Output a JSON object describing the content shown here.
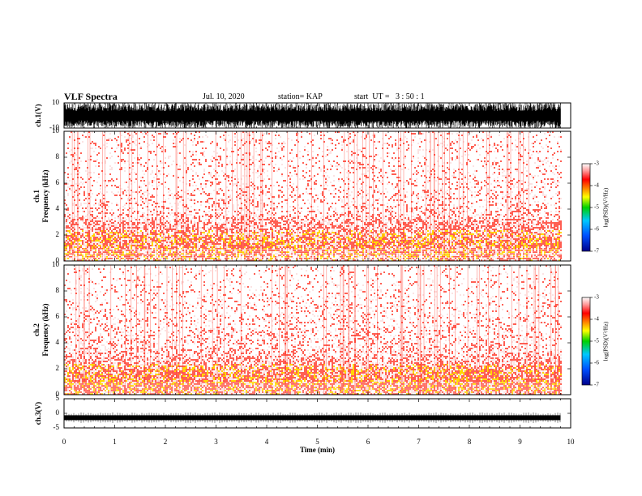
{
  "header": {
    "title": "VLF Spectra",
    "date": "Jul. 10, 2020",
    "station": "station= KAP",
    "start": "start  UT =   3 : 50 : 1"
  },
  "colors": {
    "spectrogram_bg": "#ffffff",
    "spectrogram_low": "#fbe3e3",
    "spectrogram_mid": "#ff2a1a",
    "spectrogram_high": "#ffd700",
    "waveform": "#000000"
  },
  "chart_data": [
    {
      "type": "line",
      "panel": "ch1-waveform",
      "ylabel": "ch.1(V)",
      "yticks": [
        "10",
        "-10"
      ],
      "ylim": [
        -10,
        10
      ],
      "xlim": [
        0,
        10
      ],
      "data_end_min": 9.8,
      "description_of_series": "dense VLF waveform filling approximately -10 to 10 V"
    },
    {
      "type": "heatmap",
      "panel": "ch1-spectrogram",
      "ylabel": "ch.1\nFrequency (kHz)",
      "yticks": [
        "0",
        "2",
        "4",
        "6",
        "8",
        "10"
      ],
      "ylim": [
        0,
        10
      ],
      "xlim": [
        0,
        10
      ],
      "data_end_min": 9.8,
      "band_profile_khz": [
        [
          0.0,
          0.55
        ],
        [
          0.5,
          0.8
        ],
        [
          1.0,
          0.85
        ],
        [
          1.5,
          0.9
        ],
        [
          2.0,
          0.75
        ],
        [
          2.5,
          0.65
        ],
        [
          3.0,
          0.6
        ],
        [
          3.5,
          0.35
        ],
        [
          4.0,
          0.25
        ],
        [
          6.0,
          0.18
        ],
        [
          8.0,
          0.15
        ],
        [
          10.0,
          0.12
        ]
      ],
      "colorbar": {
        "label": "log(PSD)(V²/Hz)",
        "ticks": [
          "-3",
          "-4",
          "-5",
          "-6",
          "-7"
        ],
        "range": [
          -7,
          -3
        ]
      }
    },
    {
      "type": "heatmap",
      "panel": "ch2-spectrogram",
      "ylabel": "ch.2\nFrequency (kHz)",
      "yticks": [
        "0",
        "2",
        "4",
        "6",
        "8",
        "10"
      ],
      "ylim": [
        0,
        10
      ],
      "xlim": [
        0,
        10
      ],
      "data_end_min": 9.8,
      "band_profile_khz": [
        [
          0.0,
          0.7
        ],
        [
          0.5,
          0.9
        ],
        [
          1.0,
          0.95
        ],
        [
          1.5,
          0.9
        ],
        [
          2.0,
          0.85
        ],
        [
          2.5,
          0.6
        ],
        [
          3.0,
          0.45
        ],
        [
          3.5,
          0.35
        ],
        [
          4.0,
          0.3
        ],
        [
          6.0,
          0.2
        ],
        [
          8.0,
          0.15
        ],
        [
          10.0,
          0.1
        ]
      ],
      "colorbar": {
        "label": "log(PSD)(V²/Hz)",
        "ticks": [
          "-3",
          "-4",
          "-5",
          "-6",
          "-7"
        ],
        "range": [
          -7,
          -3
        ]
      }
    },
    {
      "type": "line",
      "panel": "ch3-waveform",
      "ylabel": "ch.3(V)",
      "yticks": [
        "5",
        "0",
        "-5"
      ],
      "ylim": [
        -5,
        5
      ],
      "xlim": [
        0,
        10
      ],
      "data_end_min": 9.8,
      "level_v": -1.5
    }
  ],
  "xaxis": {
    "label": "Time (min)",
    "ticks": [
      "0",
      "1",
      "2",
      "3",
      "4",
      "5",
      "6",
      "7",
      "8",
      "9",
      "10"
    ]
  }
}
